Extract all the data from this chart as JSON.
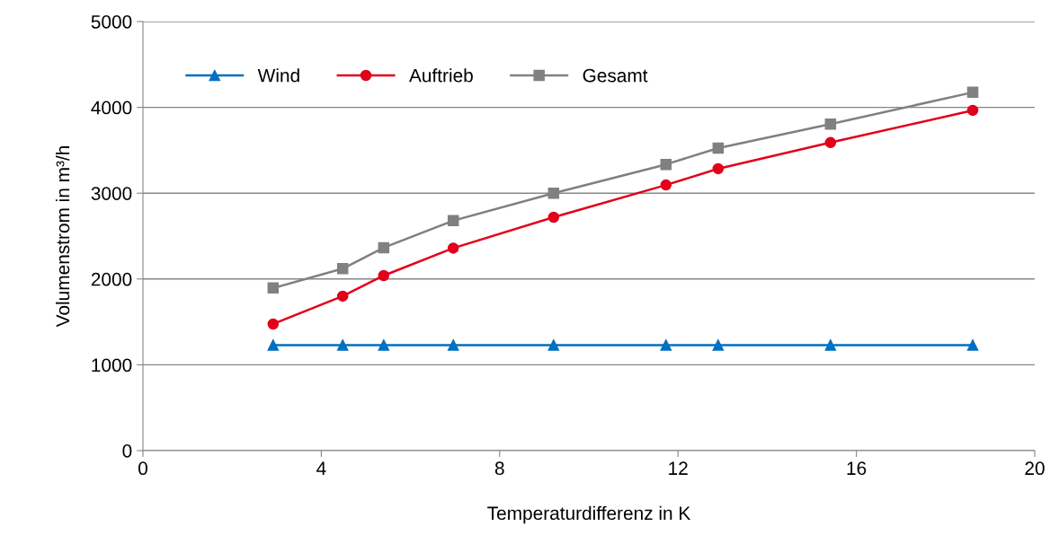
{
  "chart_data": {
    "type": "line",
    "xlabel": "Temperaturdifferenz in K",
    "ylabel": "Volumenstrom in m³/h",
    "x": [
      2.92,
      4.48,
      5.4,
      6.96,
      9.21,
      11.73,
      12.9,
      15.42,
      18.61
    ],
    "series": [
      {
        "name": "Wind",
        "color": "#0070c0",
        "marker": "triangle",
        "values": [
          1230,
          1230,
          1230,
          1230,
          1230,
          1230,
          1230,
          1230,
          1230
        ]
      },
      {
        "name": "Auftrieb",
        "color": "#e2001a",
        "marker": "circle",
        "values": [
          1475,
          1800,
          2040,
          2360,
          2720,
          3095,
          3285,
          3590,
          3965
        ]
      },
      {
        "name": "Gesamt",
        "color": "#808080",
        "marker": "square",
        "values": [
          1895,
          2120,
          2365,
          2680,
          3000,
          3335,
          3525,
          3805,
          4175
        ]
      }
    ],
    "xlim": [
      0,
      20
    ],
    "xticks": [
      0,
      4,
      8,
      12,
      16,
      20
    ],
    "ylim": [
      0,
      5000
    ],
    "yticks": [
      0,
      1000,
      2000,
      3000,
      4000,
      5000
    ],
    "grid": "y",
    "legend": "top left"
  }
}
